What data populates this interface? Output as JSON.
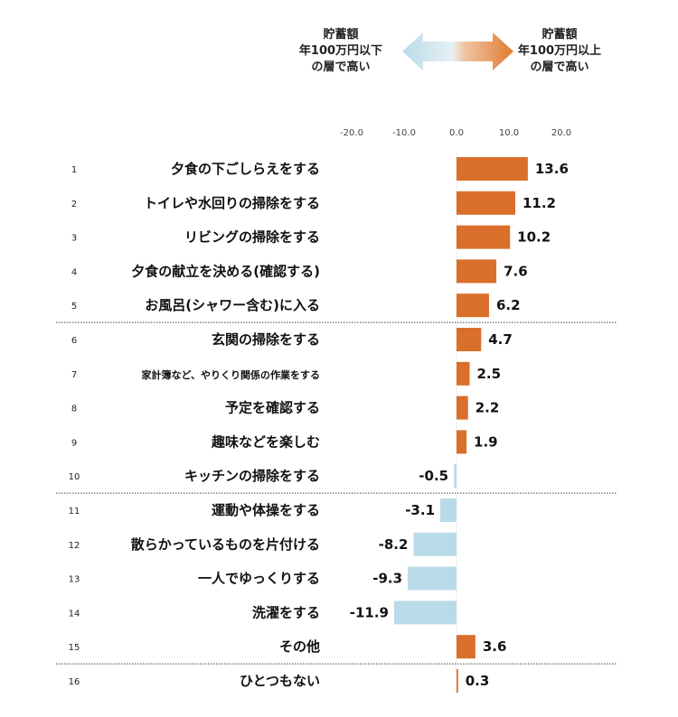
{
  "legend": {
    "left": [
      "貯蓄額",
      "年100万円以下",
      "の層で高い"
    ],
    "right": [
      "貯蓄額",
      "年100万円以上",
      "の層で高い"
    ],
    "left_color": "#c9e0ea",
    "right_color": "#e07b30"
  },
  "chart_data": {
    "type": "bar",
    "orientation": "horizontal",
    "xlim": [
      -20,
      20
    ],
    "ticks": [
      "-20.0",
      "-10.0",
      "0.0",
      "10.0",
      "20.0"
    ],
    "tick_values": [
      -20,
      -10,
      0,
      10,
      20
    ],
    "positive_color": "#d96f2a",
    "negative_color": "#b9dbe8",
    "categories": [
      {
        "rank": "1",
        "label": "夕食の下ごしらえをする",
        "value": 13.6,
        "value_label": "13.6"
      },
      {
        "rank": "2",
        "label": "トイレや水回りの掃除をする",
        "value": 11.2,
        "value_label": "11.2"
      },
      {
        "rank": "3",
        "label": "リビングの掃除をする",
        "value": 10.2,
        "value_label": "10.2"
      },
      {
        "rank": "4",
        "label": "夕食の献立を決める(確認する)",
        "value": 7.6,
        "value_label": "7.6"
      },
      {
        "rank": "5",
        "label": "お風呂(シャワー含む)に入る",
        "value": 6.2,
        "value_label": "6.2"
      },
      {
        "rank": "6",
        "label": "玄関の掃除をする",
        "value": 4.7,
        "value_label": "4.7"
      },
      {
        "rank": "7",
        "label": "家計簿など、やりくり関係の作業をする",
        "value": 2.5,
        "value_label": "2.5",
        "small": true
      },
      {
        "rank": "8",
        "label": "予定を確認する",
        "value": 2.2,
        "value_label": "2.2"
      },
      {
        "rank": "9",
        "label": "趣味などを楽しむ",
        "value": 1.9,
        "value_label": "1.9"
      },
      {
        "rank": "10",
        "label": "キッチンの掃除をする",
        "value": -0.5,
        "value_label": "-0.5"
      },
      {
        "rank": "11",
        "label": "運動や体操をする",
        "value": -3.1,
        "value_label": "-3.1"
      },
      {
        "rank": "12",
        "label": "散らかっているものを片付ける",
        "value": -8.2,
        "value_label": "-8.2"
      },
      {
        "rank": "13",
        "label": "一人でゆっくりする",
        "value": -9.3,
        "value_label": "-9.3"
      },
      {
        "rank": "14",
        "label": "洗濯をする",
        "value": -11.9,
        "value_label": "-11.9"
      },
      {
        "rank": "15",
        "label": "その他",
        "value": 3.6,
        "value_label": "3.6"
      },
      {
        "rank": "16",
        "label": "ひとつもない",
        "value": 0.3,
        "value_label": "0.3"
      }
    ],
    "separators_after_rank": [
      5,
      10,
      15
    ]
  }
}
